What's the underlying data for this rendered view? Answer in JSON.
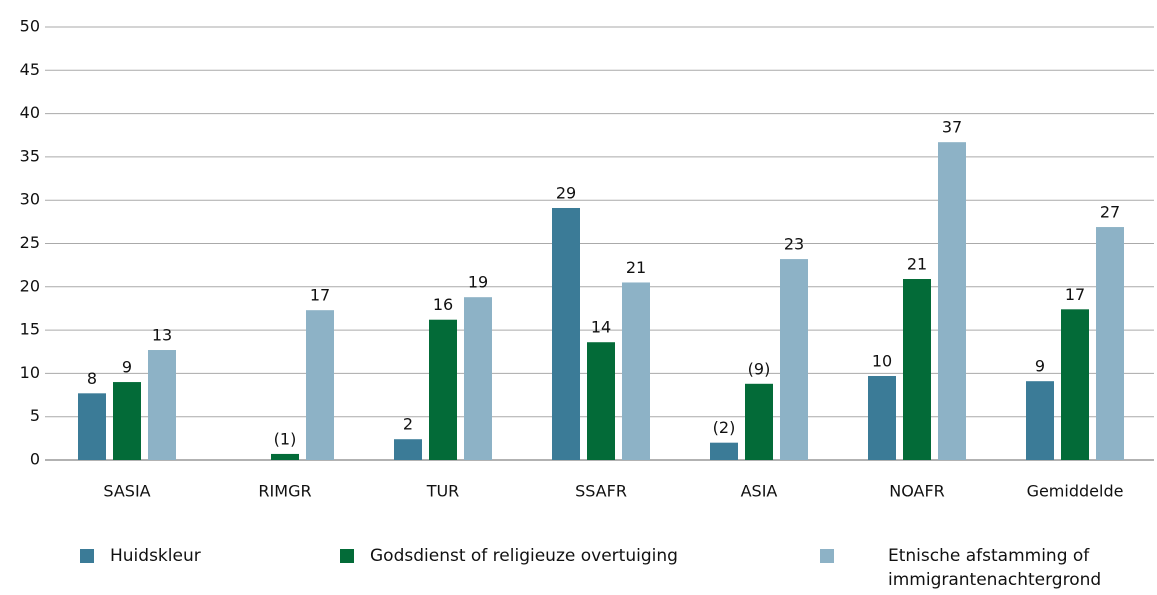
{
  "chart_data": {
    "type": "bar",
    "categories": [
      "SASIA",
      "RIMGR",
      "TUR",
      "SSAFR",
      "ASIA",
      "NOAFR",
      "Gemiddelde"
    ],
    "series": [
      {
        "name": "Huidskleur",
        "color": "#3b7b97",
        "values": [
          7.7,
          null,
          2.4,
          29.1,
          2.0,
          9.7,
          9.1
        ],
        "value_labels": [
          "8",
          null,
          "2",
          "29",
          "(2)",
          "10",
          "9"
        ]
      },
      {
        "name": "Godsdienst of religieuze overtuiging",
        "color": "#036b38",
        "values": [
          9.0,
          0.7,
          16.2,
          13.6,
          8.8,
          20.9,
          17.4
        ],
        "value_labels": [
          "9",
          "(1)",
          "16",
          "14",
          "(9)",
          "21",
          "17"
        ]
      },
      {
        "name": "Etnische afstamming of immigrantenachtergrond",
        "color": "#8db2c6",
        "values": [
          12.7,
          17.3,
          18.8,
          20.5,
          23.2,
          36.7,
          26.9
        ],
        "value_labels": [
          "13",
          "17",
          "19",
          "21",
          "23",
          "37",
          "27"
        ]
      }
    ],
    "ylim": [
      0,
      50
    ],
    "yticks": [
      0,
      5,
      10,
      15,
      20,
      25,
      30,
      35,
      40,
      45,
      50
    ],
    "grid": true
  }
}
